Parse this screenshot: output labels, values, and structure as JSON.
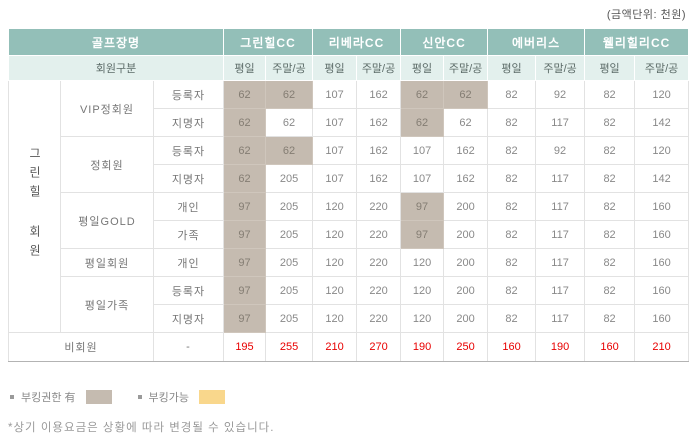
{
  "unit_note": "(금액단위: 천원)",
  "table": {
    "course_col_header": "골프장명",
    "member_col_header": "회원구분",
    "day_label": "평일",
    "weekend_label": "주말/공",
    "courses": [
      "그린힐CC",
      "리베라CC",
      "신안CC",
      "에버리스",
      "웰리힐리CC"
    ],
    "group_label": "그린힐 회원",
    "rows": [
      {
        "member": "VIP정회원",
        "member_span": 2,
        "type": "등록자",
        "values": [
          62,
          62,
          107,
          162,
          62,
          62,
          82,
          92,
          82,
          120
        ],
        "hl": [
          1,
          1,
          0,
          0,
          1,
          1,
          0,
          0,
          0,
          0
        ]
      },
      {
        "member": null,
        "member_span": 0,
        "type": "지명자",
        "values": [
          62,
          62,
          107,
          162,
          62,
          62,
          82,
          117,
          82,
          142
        ],
        "hl": [
          1,
          0,
          0,
          0,
          1,
          0,
          0,
          0,
          0,
          0
        ]
      },
      {
        "member": "정회원",
        "member_span": 2,
        "type": "등록자",
        "values": [
          62,
          62,
          107,
          162,
          107,
          162,
          82,
          92,
          82,
          120
        ],
        "hl": [
          1,
          1,
          0,
          0,
          0,
          0,
          0,
          0,
          0,
          0
        ]
      },
      {
        "member": null,
        "member_span": 0,
        "type": "지명자",
        "values": [
          62,
          205,
          107,
          162,
          107,
          162,
          82,
          117,
          82,
          142
        ],
        "hl": [
          1,
          0,
          0,
          0,
          0,
          0,
          0,
          0,
          0,
          0
        ]
      },
      {
        "member": "평일GOLD",
        "member_span": 2,
        "type": "개인",
        "values": [
          97,
          205,
          120,
          220,
          97,
          200,
          82,
          117,
          82,
          160
        ],
        "hl": [
          1,
          0,
          0,
          0,
          1,
          0,
          0,
          0,
          0,
          0
        ]
      },
      {
        "member": null,
        "member_span": 0,
        "type": "가족",
        "values": [
          97,
          205,
          120,
          220,
          97,
          200,
          82,
          117,
          82,
          160
        ],
        "hl": [
          1,
          0,
          0,
          0,
          1,
          0,
          0,
          0,
          0,
          0
        ]
      },
      {
        "member": "평일회원",
        "member_span": 1,
        "type": "개인",
        "values": [
          97,
          205,
          120,
          220,
          120,
          200,
          82,
          117,
          82,
          160
        ],
        "hl": [
          1,
          0,
          0,
          0,
          0,
          0,
          0,
          0,
          0,
          0
        ]
      },
      {
        "member": "평일가족",
        "member_span": 2,
        "type": "등록자",
        "values": [
          97,
          205,
          120,
          220,
          120,
          200,
          82,
          117,
          82,
          160
        ],
        "hl": [
          1,
          0,
          0,
          0,
          0,
          0,
          0,
          0,
          0,
          0
        ]
      },
      {
        "member": null,
        "member_span": 0,
        "type": "지명자",
        "values": [
          97,
          205,
          120,
          220,
          120,
          200,
          82,
          117,
          82,
          160
        ],
        "hl": [
          1,
          0,
          0,
          0,
          0,
          0,
          0,
          0,
          0,
          0
        ]
      }
    ],
    "nonmember": {
      "label": "비회원",
      "type": "-",
      "values": [
        195,
        255,
        210,
        270,
        190,
        250,
        160,
        190,
        160,
        210
      ]
    }
  },
  "legend": {
    "booking_right": {
      "label": "부킹권한 有",
      "color": "#c5bbb0"
    },
    "booking_available": {
      "label": "부킹가능",
      "color": "#f9d78c"
    }
  },
  "footnote": "*상기 이용요금은 상황에 따라 변경될 수 있습니다.",
  "colors": {
    "header_teal": "#93bfb8",
    "header_mint": "#e3f0ed",
    "highlight_tan": "#c5bbb0",
    "legend_yellow": "#f9d78c",
    "nonmember_red": "#e80000"
  }
}
